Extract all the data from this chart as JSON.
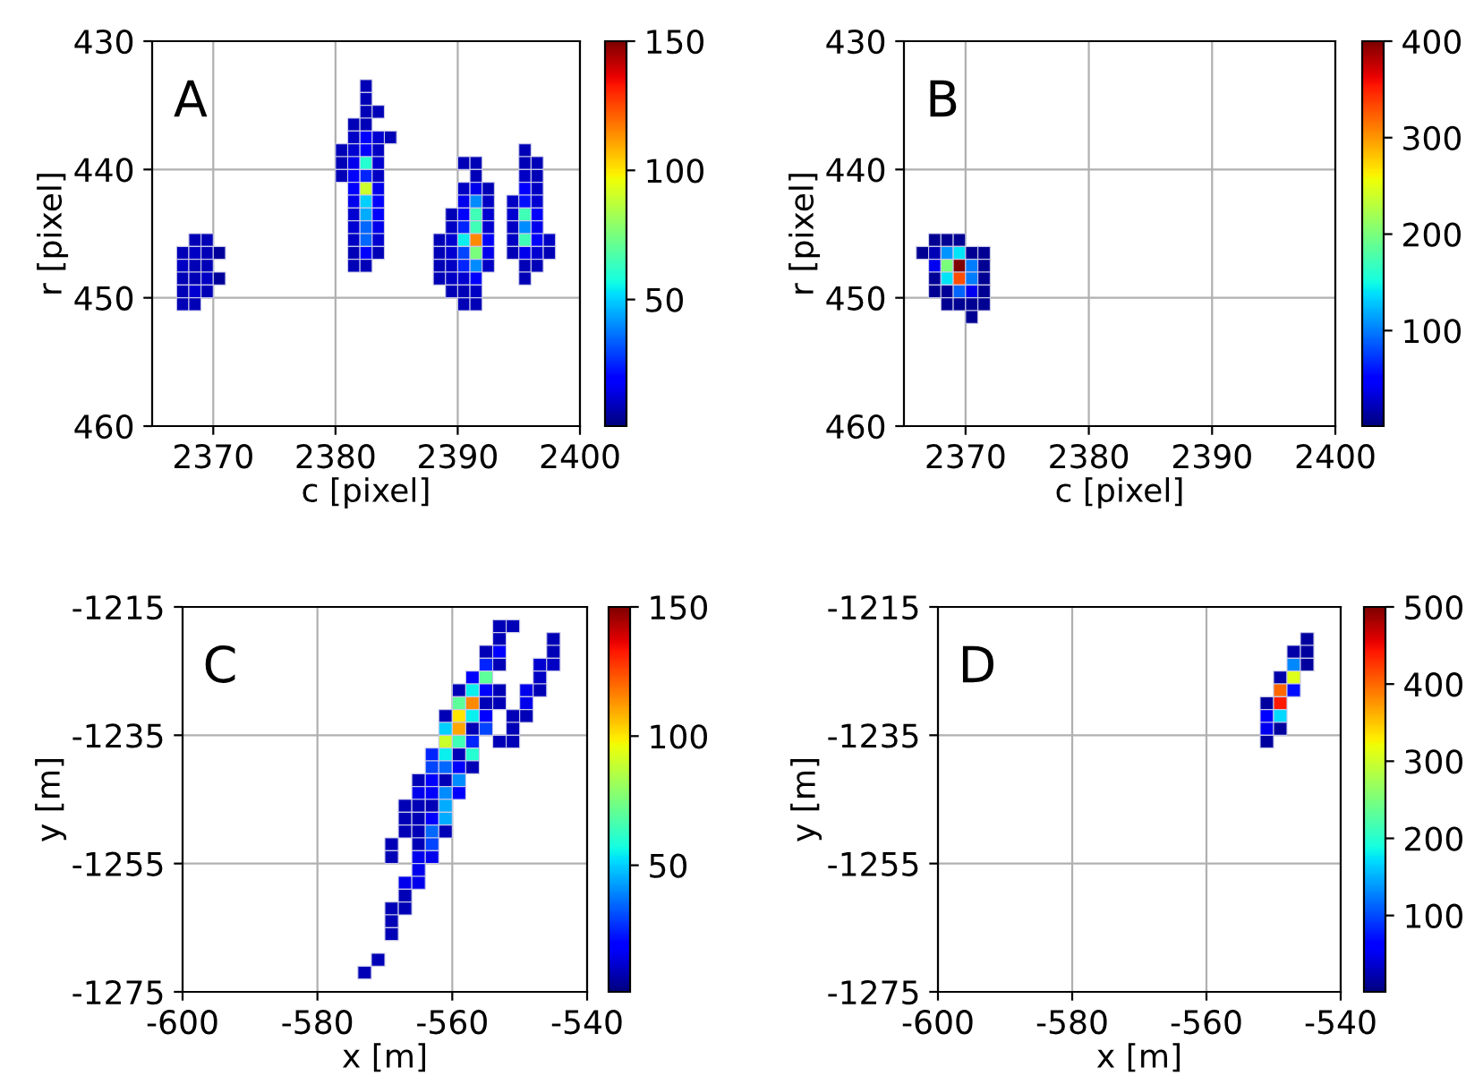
{
  "chart_data": [
    {
      "type": "scatter",
      "annotations": [
        "A"
      ],
      "xlabel": "c [pixel]",
      "ylabel": "r [pixel]",
      "marker": "square",
      "grid": true,
      "xlim": [
        2365,
        2400
      ],
      "ylim": [
        460,
        430
      ],
      "xticks": [
        2370,
        2380,
        2390,
        2400
      ],
      "yticks": [
        430,
        440,
        450,
        460
      ],
      "clim": [
        1,
        150
      ],
      "cticks": [
        50,
        100,
        150
      ],
      "x": [
        2382.5,
        2382.5,
        2382.5,
        2383.5,
        2381.5,
        2382.5,
        2381.5,
        2382.5,
        2383.5,
        2384.5,
        2380.5,
        2381.5,
        2382.5,
        2383.5,
        2395.5,
        2380.5,
        2381.5,
        2382.5,
        2383.5,
        2390.5,
        2391.5,
        2395.5,
        2396.5,
        2380.5,
        2381.5,
        2382.5,
        2383.5,
        2391.5,
        2395.5,
        2396.5,
        2381.5,
        2382.5,
        2383.5,
        2390.5,
        2391.5,
        2392.5,
        2395.5,
        2396.5,
        2381.5,
        2382.5,
        2383.5,
        2390.5,
        2391.5,
        2392.5,
        2394.5,
        2395.5,
        2396.5,
        2381.5,
        2382.5,
        2383.5,
        2389.5,
        2390.5,
        2391.5,
        2392.5,
        2394.5,
        2395.5,
        2396.5,
        2381.5,
        2382.5,
        2383.5,
        2389.5,
        2390.5,
        2391.5,
        2392.5,
        2394.5,
        2395.5,
        2396.5,
        2368.5,
        2369.5,
        2381.5,
        2382.5,
        2383.5,
        2388.5,
        2389.5,
        2390.5,
        2391.5,
        2392.5,
        2394.5,
        2395.5,
        2396.5,
        2397.5,
        2367.5,
        2368.5,
        2369.5,
        2370.5,
        2381.5,
        2382.5,
        2383.5,
        2388.5,
        2389.5,
        2390.5,
        2391.5,
        2392.5,
        2394.5,
        2395.5,
        2396.5,
        2397.5,
        2367.5,
        2368.5,
        2369.5,
        2381.5,
        2382.5,
        2388.5,
        2389.5,
        2390.5,
        2391.5,
        2392.5,
        2395.5,
        2396.5,
        2367.5,
        2368.5,
        2369.5,
        2370.5,
        2388.5,
        2389.5,
        2390.5,
        2391.5,
        2395.5,
        2367.5,
        2368.5,
        2369.5,
        2389.5,
        2390.5,
        2391.5,
        2367.5,
        2368.5,
        2390.5,
        2391.5
      ],
      "values": [
        433.5,
        434.5,
        435.5,
        435.5,
        436.5,
        436.5,
        437.5,
        437.5,
        437.5,
        437.5,
        438.5,
        438.5,
        438.5,
        438.5,
        438.5,
        439.5,
        439.5,
        439.5,
        439.5,
        439.5,
        439.5,
        439.5,
        439.5,
        440.5,
        440.5,
        440.5,
        440.5,
        440.5,
        440.5,
        440.5,
        441.5,
        441.5,
        441.5,
        441.5,
        441.5,
        441.5,
        441.5,
        441.5,
        442.5,
        442.5,
        442.5,
        442.5,
        442.5,
        442.5,
        442.5,
        442.5,
        442.5,
        443.5,
        443.5,
        443.5,
        443.5,
        443.5,
        443.5,
        443.5,
        443.5,
        443.5,
        443.5,
        444.5,
        444.5,
        444.5,
        444.5,
        444.5,
        444.5,
        444.5,
        444.5,
        444.5,
        444.5,
        445.5,
        445.5,
        445.5,
        445.5,
        445.5,
        445.5,
        445.5,
        445.5,
        445.5,
        445.5,
        445.5,
        445.5,
        445.5,
        445.5,
        446.5,
        446.5,
        446.5,
        446.5,
        446.5,
        446.5,
        446.5,
        446.5,
        446.5,
        446.5,
        446.5,
        446.5,
        446.5,
        446.5,
        446.5,
        446.5,
        447.5,
        447.5,
        447.5,
        447.5,
        447.5,
        447.5,
        447.5,
        447.5,
        447.5,
        447.5,
        447.5,
        447.5,
        448.5,
        448.5,
        448.5,
        448.5,
        448.5,
        448.5,
        448.5,
        448.5,
        448.5,
        449.5,
        449.5,
        449.5,
        449.5,
        449.5,
        449.5,
        450.5,
        450.5,
        450.5,
        450.5
      ],
      "cvalues": [
        8,
        8,
        8,
        8,
        8,
        8,
        10,
        18,
        12,
        8,
        8,
        12,
        20,
        10,
        8,
        8,
        15,
        60,
        12,
        8,
        8,
        8,
        8,
        8,
        18,
        25,
        10,
        8,
        10,
        8,
        18,
        90,
        15,
        10,
        15,
        8,
        18,
        10,
        15,
        50,
        18,
        15,
        40,
        10,
        10,
        22,
        12,
        12,
        45,
        20,
        8,
        20,
        65,
        12,
        12,
        65,
        18,
        12,
        35,
        15,
        10,
        25,
        65,
        12,
        10,
        40,
        15,
        8,
        8,
        10,
        35,
        12,
        8,
        12,
        55,
        115,
        18,
        10,
        65,
        20,
        10,
        8,
        10,
        8,
        5,
        8,
        20,
        8,
        8,
        12,
        30,
        75,
        15,
        8,
        15,
        12,
        8,
        10,
        8,
        8,
        8,
        8,
        8,
        10,
        25,
        40,
        10,
        8,
        8,
        8,
        8,
        10,
        5,
        8,
        10,
        12,
        18,
        8,
        8,
        12,
        8,
        8,
        8,
        10,
        8,
        8,
        8,
        8
      ]
    },
    {
      "type": "scatter",
      "annotations": [
        "B"
      ],
      "xlabel": "c [pixel]",
      "ylabel": "r [pixel]",
      "marker": "square",
      "grid": true,
      "xlim": [
        2365,
        2400
      ],
      "ylim": [
        460,
        430
      ],
      "xticks": [
        2370,
        2380,
        2390,
        2400
      ],
      "yticks": [
        430,
        440,
        450,
        460
      ],
      "clim": [
        1,
        400
      ],
      "cticks": [
        100,
        200,
        300,
        400
      ],
      "x": [
        2367.5,
        2368.5,
        2369.5,
        2366.5,
        2367.5,
        2368.5,
        2369.5,
        2370.5,
        2371.5,
        2367.5,
        2368.5,
        2369.5,
        2370.5,
        2371.5,
        2367.5,
        2368.5,
        2369.5,
        2370.5,
        2371.5,
        2367.5,
        2368.5,
        2369.5,
        2370.5,
        2371.5,
        2368.5,
        2369.5,
        2370.5,
        2371.5,
        2370.5
      ],
      "values": [
        445.5,
        445.5,
        445.5,
        446.5,
        446.5,
        446.5,
        446.5,
        446.5,
        446.5,
        447.5,
        447.5,
        447.5,
        447.5,
        447.5,
        448.5,
        448.5,
        448.5,
        448.5,
        448.5,
        449.5,
        449.5,
        449.5,
        449.5,
        449.5,
        450.5,
        450.5,
        450.5,
        450.5,
        451.5
      ],
      "cvalues": [
        8,
        8,
        8,
        8,
        20,
        110,
        140,
        8,
        8,
        40,
        200,
        400,
        100,
        8,
        10,
        140,
        330,
        100,
        8,
        8,
        10,
        90,
        40,
        8,
        8,
        8,
        8,
        8,
        8
      ]
    },
    {
      "type": "scatter",
      "annotations": [
        "C"
      ],
      "xlabel": "x [m]",
      "ylabel": "y [m]",
      "marker": "square",
      "grid": true,
      "xlim": [
        -600,
        -540
      ],
      "ylim": [
        -1275,
        -1215
      ],
      "xticks": [
        -600,
        -580,
        -560,
        -540
      ],
      "yticks": [
        -1275,
        -1255,
        -1235,
        -1215
      ],
      "clim": [
        1,
        150
      ],
      "cticks": [
        50,
        100,
        150
      ],
      "x": [
        -553,
        -551,
        -553,
        -545,
        -555,
        -553,
        -545,
        -555,
        -553,
        -547,
        -545,
        -557,
        -555,
        -547,
        -559,
        -557,
        -555,
        -553,
        -549,
        -547,
        -559,
        -557,
        -555,
        -553,
        -549,
        -561,
        -559,
        -557,
        -555,
        -551,
        -549,
        -561,
        -559,
        -557,
        -555,
        -551,
        -561,
        -559,
        -557,
        -553,
        -551,
        -563,
        -561,
        -559,
        -557,
        -563,
        -561,
        -559,
        -557,
        -565,
        -563,
        -561,
        -559,
        -565,
        -563,
        -561,
        -559,
        -567,
        -565,
        -563,
        -561,
        -567,
        -565,
        -563,
        -561,
        -567,
        -565,
        -563,
        -561,
        -569,
        -565,
        -563,
        -569,
        -565,
        -563,
        -565,
        -567,
        -565,
        -567,
        -569,
        -567,
        -569,
        -569,
        -571,
        -573
      ],
      "values": [
        -1218,
        -1218,
        -1220,
        -1220,
        -1222,
        -1222,
        -1222,
        -1224,
        -1224,
        -1224,
        -1224,
        -1226,
        -1226,
        -1226,
        -1228,
        -1228,
        -1228,
        -1228,
        -1228,
        -1228,
        -1230,
        -1230,
        -1230,
        -1230,
        -1230,
        -1232,
        -1232,
        -1232,
        -1232,
        -1232,
        -1232,
        -1234,
        -1234,
        -1234,
        -1234,
        -1234,
        -1236,
        -1236,
        -1236,
        -1236,
        -1236,
        -1238,
        -1238,
        -1238,
        -1238,
        -1240,
        -1240,
        -1240,
        -1240,
        -1242,
        -1242,
        -1242,
        -1242,
        -1244,
        -1244,
        -1244,
        -1244,
        -1246,
        -1246,
        -1246,
        -1246,
        -1248,
        -1248,
        -1248,
        -1248,
        -1250,
        -1250,
        -1250,
        -1250,
        -1252,
        -1252,
        -1252,
        -1254,
        -1254,
        -1254,
        -1256,
        -1258,
        -1258,
        -1260,
        -1262,
        -1262,
        -1264,
        -1266,
        -1270,
        -1272
      ],
      "cvalues": [
        8,
        8,
        8,
        8,
        8,
        20,
        8,
        25,
        8,
        12,
        10,
        18,
        70,
        10,
        8,
        55,
        20,
        8,
        15,
        8,
        70,
        115,
        8,
        8,
        15,
        8,
        100,
        55,
        18,
        8,
        8,
        50,
        110,
        8,
        30,
        8,
        90,
        65,
        25,
        8,
        8,
        25,
        55,
        8,
        60,
        30,
        35,
        20,
        8,
        8,
        18,
        8,
        40,
        15,
        18,
        40,
        20,
        8,
        8,
        8,
        45,
        8,
        8,
        18,
        45,
        8,
        8,
        35,
        8,
        8,
        8,
        30,
        8,
        15,
        15,
        15,
        15,
        15,
        8,
        8,
        8,
        8,
        8,
        8,
        8
      ]
    },
    {
      "type": "scatter",
      "annotations": [
        "D"
      ],
      "xlabel": "x [m]",
      "ylabel": "y [m]",
      "marker": "square",
      "grid": true,
      "xlim": [
        -600,
        -540
      ],
      "ylim": [
        -1275,
        -1215
      ],
      "xticks": [
        -600,
        -580,
        -560,
        -540
      ],
      "yticks": [
        -1275,
        -1255,
        -1235,
        -1215
      ],
      "clim": [
        1,
        500
      ],
      "cticks": [
        100,
        200,
        300,
        400,
        500
      ],
      "x": [
        -545,
        -547,
        -545,
        -547,
        -545,
        -549,
        -547,
        -549,
        -547,
        -551,
        -549,
        -551,
        -549,
        -551,
        -549,
        -551
      ],
      "values": [
        -1220,
        -1222,
        -1222,
        -1224,
        -1224,
        -1226,
        -1226,
        -1228,
        -1228,
        -1230,
        -1230,
        -1232,
        -1232,
        -1234,
        -1234,
        -1236
      ],
      "cvalues": [
        15,
        20,
        15,
        130,
        15,
        20,
        310,
        400,
        70,
        15,
        440,
        60,
        170,
        50,
        15,
        15
      ]
    }
  ]
}
